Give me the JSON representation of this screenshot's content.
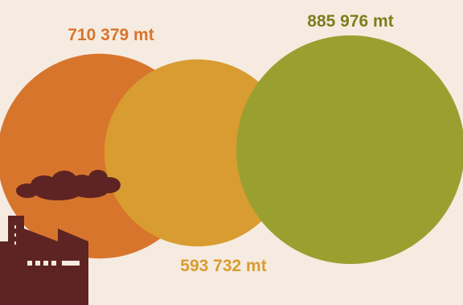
{
  "chart_data": {
    "type": "bubble",
    "series": [
      {
        "label": "710 379 mt",
        "value": 710379,
        "color": "#d8752c"
      },
      {
        "label": "593 732 mt",
        "value": 593732,
        "color": "#d89c31"
      },
      {
        "label": "885 976 mt",
        "value": 885976,
        "color": "#99a030"
      }
    ]
  },
  "icons": {
    "factory": "factory-icon",
    "smoke": "smoke-cloud-icon"
  },
  "colors": {
    "background": "#f6ebe0",
    "icon": "#5e2423"
  }
}
